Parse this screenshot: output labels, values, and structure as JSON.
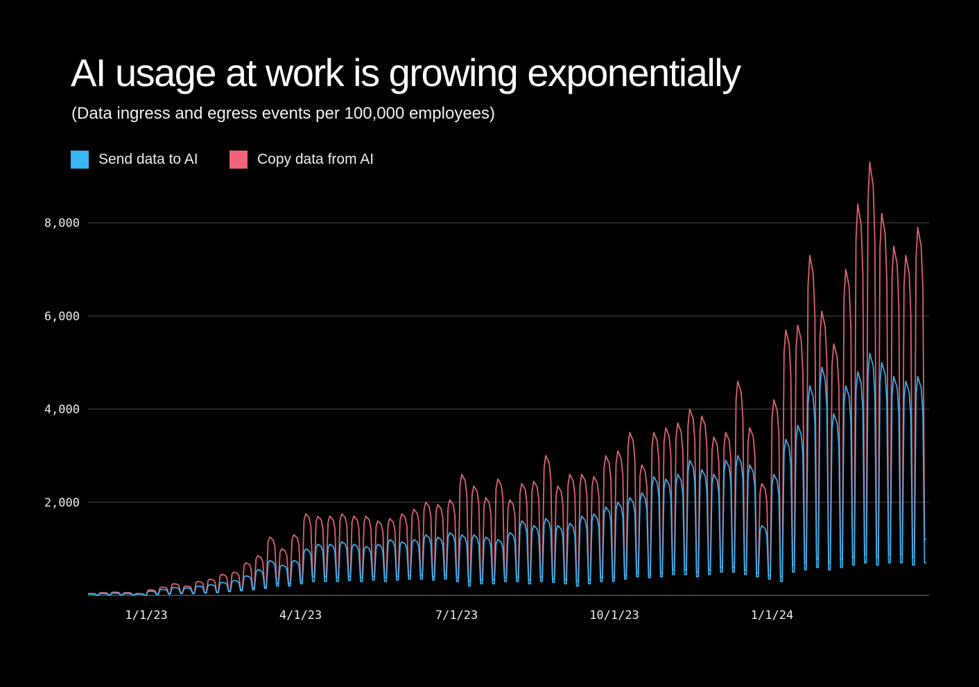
{
  "chart_data": {
    "type": "line",
    "title": "AI usage at work is growing exponentially",
    "subtitle": "(Data ingress and egress events per 100,000 employees)",
    "xlim": [
      "2022-11-28",
      "2024-03-31"
    ],
    "ylim": [
      0,
      8000
    ],
    "grid": true,
    "legend_placement": "top-left",
    "x_ticks": [
      {
        "date": "2023-01-01",
        "label": "1/1/23"
      },
      {
        "date": "2023-04-01",
        "label": "4/1/23"
      },
      {
        "date": "2023-07-01",
        "label": "7/1/23"
      },
      {
        "date": "2023-10-01",
        "label": "10/1/23"
      },
      {
        "date": "2024-01-01",
        "label": "1/1/24"
      }
    ],
    "y_ticks": [
      {
        "value": 2000,
        "label": "2,000"
      },
      {
        "value": 4000,
        "label": "4,000"
      },
      {
        "value": 6000,
        "label": "6,000"
      },
      {
        "value": 8000,
        "label": "8,000"
      }
    ],
    "weeks_start": "2022-11-28",
    "series": [
      {
        "name": "Send data to AI",
        "color": "#38b6f5",
        "weekly_peak": [
          30,
          40,
          50,
          40,
          30,
          90,
          130,
          170,
          160,
          200,
          230,
          280,
          320,
          420,
          550,
          750,
          650,
          750,
          1000,
          1100,
          1100,
          1150,
          1100,
          1050,
          1100,
          1200,
          1150,
          1200,
          1300,
          1250,
          1350,
          1300,
          1300,
          1250,
          1200,
          1350,
          1600,
          1500,
          1650,
          1500,
          1550,
          1700,
          1750,
          1900,
          2000,
          2100,
          2200,
          2550,
          2500,
          2600,
          2900,
          2700,
          2600,
          2900,
          3000,
          2800,
          1500,
          2600,
          3350,
          3650,
          4500,
          4900,
          3900,
          4500,
          4800,
          5200,
          5000,
          4700,
          4600,
          4700
        ],
        "weekly_low": [
          5,
          10,
          10,
          10,
          5,
          20,
          30,
          40,
          40,
          50,
          60,
          80,
          100,
          120,
          150,
          200,
          200,
          250,
          300,
          300,
          300,
          320,
          300,
          330,
          300,
          330,
          350,
          350,
          330,
          350,
          300,
          200,
          250,
          250,
          300,
          300,
          250,
          300,
          280,
          250,
          200,
          250,
          300,
          300,
          350,
          400,
          380,
          400,
          450,
          450,
          400,
          450,
          500,
          500,
          450,
          400,
          350,
          300,
          500,
          550,
          600,
          550,
          600,
          650,
          700,
          650,
          700,
          700,
          650,
          700
        ]
      },
      {
        "name": "Copy data from AI",
        "color": "#ee6579",
        "weekly_peak": [
          40,
          60,
          70,
          60,
          40,
          120,
          180,
          250,
          200,
          300,
          350,
          450,
          500,
          700,
          850,
          1250,
          1000,
          1300,
          1750,
          1700,
          1700,
          1750,
          1700,
          1700,
          1600,
          1650,
          1750,
          1850,
          2000,
          1950,
          2050,
          2600,
          2350,
          2100,
          2500,
          2050,
          2400,
          2450,
          3000,
          2350,
          2600,
          2600,
          2550,
          3000,
          3100,
          3500,
          2800,
          3500,
          3600,
          3700,
          4000,
          3850,
          3400,
          3500,
          4600,
          3600,
          2400,
          4200,
          5700,
          5800,
          7300,
          6100,
          5400,
          7000,
          8400,
          9300,
          8200,
          7500,
          7300,
          7900
        ],
        "weekly_low": [
          5,
          10,
          10,
          10,
          5,
          25,
          40,
          50,
          50,
          60,
          70,
          100,
          120,
          150,
          180,
          250,
          250,
          300,
          400,
          400,
          380,
          400,
          380,
          400,
          380,
          400,
          420,
          420,
          400,
          420,
          380,
          300,
          330,
          330,
          380,
          380,
          330,
          380,
          350,
          330,
          300,
          330,
          380,
          380,
          420,
          480,
          450,
          480,
          550,
          550,
          500,
          550,
          600,
          600,
          550,
          480,
          420,
          400,
          650,
          700,
          780,
          700,
          780,
          820,
          880,
          820,
          880,
          880,
          820,
          1200
        ]
      }
    ]
  }
}
